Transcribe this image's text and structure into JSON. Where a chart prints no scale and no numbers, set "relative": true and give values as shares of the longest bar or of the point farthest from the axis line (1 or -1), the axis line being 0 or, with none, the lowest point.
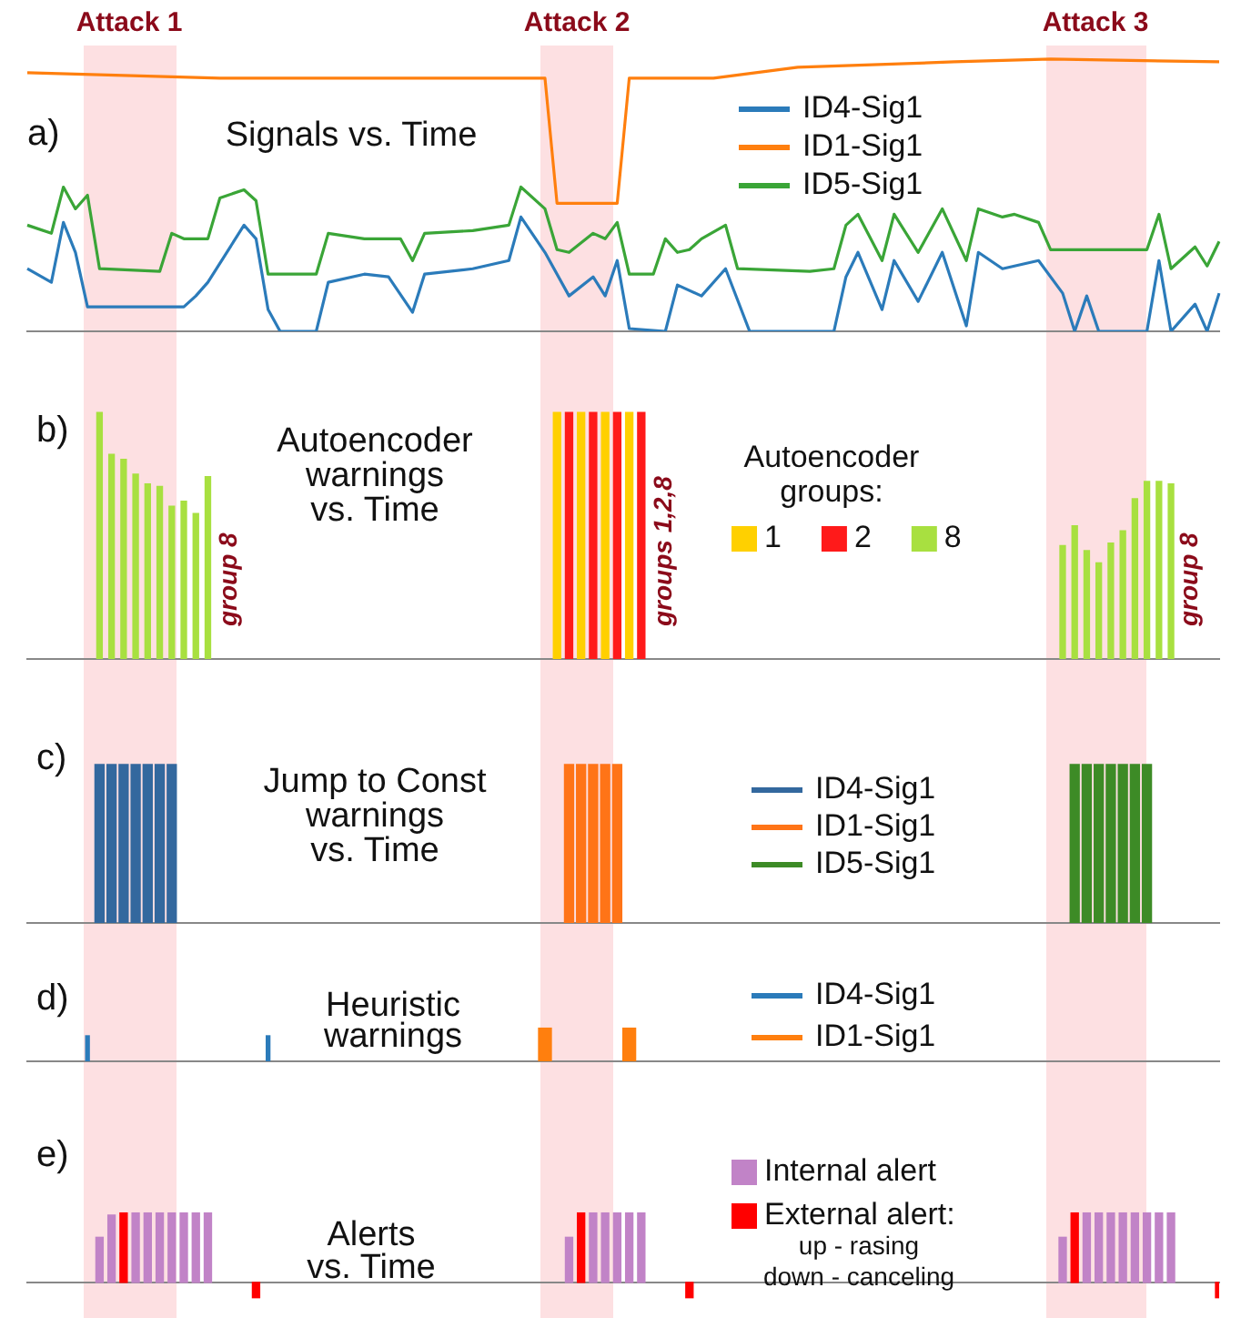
{
  "chart_data": [
    {
      "type": "line",
      "relative": true,
      "title": "Signals vs. Time",
      "annotations": [
        "a)",
        "Attack 1",
        "Attack 2",
        "Attack 3"
      ],
      "legend": "top right",
      "categories": [
        null,
        null,
        null,
        null,
        null,
        null,
        null,
        null,
        null,
        null,
        null,
        null,
        null,
        null,
        null,
        null,
        null,
        null,
        null,
        null,
        null,
        null,
        null,
        null,
        null,
        null,
        null,
        null,
        null,
        null,
        null,
        null,
        null,
        null,
        null,
        null,
        null,
        null,
        null,
        null,
        null,
        null,
        null,
        null,
        null,
        null,
        null,
        null,
        null,
        null,
        null,
        null,
        null,
        null,
        null,
        null,
        null,
        null,
        null,
        null,
        null,
        null,
        null,
        null,
        null,
        null,
        null,
        null,
        null,
        null,
        null,
        null,
        null,
        null,
        null,
        null,
        null,
        null,
        null,
        null,
        null,
        null,
        null,
        null,
        null,
        null,
        null,
        null,
        null,
        null,
        null,
        null,
        null,
        null,
        null,
        null,
        null,
        null,
        null,
        null
      ],
      "series": [
        {
          "name": "ID4-Sig1",
          "color": "#2b7bba",
          "values": [
            0.23,
            null,
            0.18,
            0.4,
            0.29,
            0.09,
            null,
            null,
            null,
            null,
            null,
            null,
            null,
            0.09,
            0.13,
            0.18,
            null,
            null,
            0.39,
            0.34,
            0.08,
            0,
            null,
            null,
            0,
            0.18,
            null,
            null,
            0.21,
            null,
            0.2,
            null,
            0.07,
            0.21,
            null,
            null,
            null,
            0.23,
            null,
            null,
            0.26,
            0.42,
            null,
            0.29,
            null,
            0.13,
            null,
            0.2,
            0.13,
            0.26,
            0.01,
            null,
            null,
            0,
            0.17,
            null,
            0.13,
            null,
            0.23,
            null,
            0,
            null,
            null,
            null,
            null,
            null,
            null,
            0,
            0.2,
            0.29,
            null,
            0.08,
            0.26,
            null,
            0.11,
            null,
            0.29,
            null,
            0.02,
            0.29,
            null,
            0.23,
            null,
            null,
            0.26,
            null,
            0.14,
            0,
            0.13,
            0,
            null,
            null,
            null,
            0,
            0.26,
            0,
            null,
            0.1,
            0,
            0.14
          ]
        },
        {
          "name": "ID1-Sig1",
          "color": "#ff7f0e",
          "values": [
            0.95,
            null,
            null,
            null,
            null,
            null,
            null,
            null,
            null,
            null,
            null,
            null,
            null,
            null,
            null,
            null,
            0.93,
            null,
            null,
            null,
            null,
            null,
            null,
            null,
            null,
            null,
            null,
            null,
            null,
            null,
            null,
            null,
            null,
            null,
            null,
            null,
            null,
            null,
            null,
            null,
            null,
            null,
            null,
            0.93,
            0.47,
            null,
            null,
            null,
            null,
            0.47,
            0.93,
            null,
            null,
            null,
            null,
            null,
            null,
            0.93,
            null,
            null,
            null,
            null,
            null,
            null,
            0.97,
            null,
            null,
            null,
            null,
            null,
            null,
            null,
            null,
            null,
            null,
            null,
            null,
            0.99,
            null,
            null,
            null,
            null,
            null,
            null,
            null,
            1,
            null,
            null,
            null,
            null,
            null,
            null,
            null,
            null,
            null,
            null,
            null,
            null,
            null,
            0.99
          ]
        },
        {
          "name": "ID5-Sig1",
          "color": "#3aa537",
          "values": [
            0.39,
            null,
            0.36,
            0.53,
            0.45,
            0.5,
            0.23,
            null,
            null,
            null,
            null,
            0.22,
            0.36,
            0.34,
            null,
            0.34,
            0.49,
            null,
            0.52,
            0.48,
            0.21,
            null,
            null,
            null,
            0.21,
            0.36,
            null,
            null,
            0.34,
            null,
            null,
            0.34,
            0.26,
            0.36,
            null,
            null,
            null,
            0.37,
            null,
            null,
            0.39,
            0.53,
            null,
            0.45,
            0.3,
            0.29,
            null,
            0.36,
            0.34,
            0.4,
            0.21,
            null,
            0.21,
            0.34,
            0.29,
            0.3,
            0.34,
            null,
            0.39,
            0.23,
            null,
            null,
            null,
            null,
            null,
            0.22,
            null,
            0.23,
            0.39,
            0.43,
            null,
            0.26,
            0.43,
            null,
            0.29,
            null,
            0.45,
            null,
            0.26,
            0.45,
            null,
            0.42,
            0.43,
            null,
            0.4,
            0.3,
            null,
            null,
            null,
            null,
            null,
            null,
            null,
            0.3,
            0.43,
            0.23,
            null,
            0.31,
            0.24,
            0.33
          ]
        }
      ]
    },
    {
      "type": "bar",
      "relative": true,
      "title": "Autoencoder\nwarnings\nvs. Time",
      "legend_title": "Autoencoder groups:",
      "annotations": [
        "b)",
        "group 8",
        "groups 1,2,8",
        "group 8"
      ],
      "legend": "right",
      "categories": [
        null,
        null,
        null,
        null,
        null,
        null,
        null,
        null,
        null,
        null,
        null,
        null,
        null,
        null,
        null,
        null,
        null,
        null,
        null,
        null,
        null,
        null,
        null,
        null,
        null,
        null,
        null,
        null,
        null,
        null,
        null,
        null,
        null,
        null,
        null,
        null,
        null,
        null,
        null,
        null,
        null,
        null,
        null,
        null,
        null,
        null,
        null,
        null,
        null,
        null,
        null,
        null,
        null,
        null,
        null,
        null,
        null,
        null,
        null,
        null,
        null,
        null,
        null,
        null,
        null,
        null,
        null,
        null,
        null,
        null,
        null,
        null,
        null,
        null,
        null,
        null,
        null,
        null,
        null,
        null,
        null,
        null,
        null,
        null,
        null,
        null,
        null,
        null,
        null,
        null,
        null,
        null,
        null,
        null,
        null,
        null,
        null,
        null,
        null,
        null
      ],
      "series": [
        {
          "name": "1",
          "color": "#ffd000",
          "values": [
            null,
            null,
            null,
            null,
            null,
            null,
            null,
            null,
            null,
            null,
            null,
            null,
            null,
            null,
            null,
            null,
            null,
            null,
            null,
            null,
            null,
            null,
            null,
            null,
            null,
            null,
            null,
            null,
            null,
            null,
            null,
            null,
            null,
            null,
            null,
            null,
            null,
            null,
            null,
            null,
            null,
            null,
            null,
            null,
            1,
            null,
            1,
            null,
            1,
            null,
            1,
            null,
            null,
            null,
            null,
            null,
            null,
            null,
            null,
            null,
            null,
            null,
            null,
            null,
            null,
            null,
            null,
            null,
            null,
            null,
            null,
            null,
            null,
            null,
            null,
            null,
            null,
            null,
            null,
            null,
            null,
            null,
            null,
            null,
            null,
            null,
            null,
            null,
            null,
            null,
            null,
            null,
            null,
            null,
            null,
            null,
            null,
            null,
            null,
            null
          ]
        },
        {
          "name": "2",
          "color": "#ff1a1a",
          "values": [
            null,
            null,
            null,
            null,
            null,
            null,
            null,
            null,
            null,
            null,
            null,
            null,
            null,
            null,
            null,
            null,
            null,
            null,
            null,
            null,
            null,
            null,
            null,
            null,
            null,
            null,
            null,
            null,
            null,
            null,
            null,
            null,
            null,
            null,
            null,
            null,
            null,
            null,
            null,
            null,
            null,
            null,
            null,
            null,
            null,
            1,
            null,
            1,
            null,
            1,
            null,
            1,
            null,
            null,
            null,
            null,
            null,
            null,
            null,
            null,
            null,
            null,
            null,
            null,
            null,
            null,
            null,
            null,
            null,
            null,
            null,
            null,
            null,
            null,
            null,
            null,
            null,
            null,
            null,
            null,
            null,
            null,
            null,
            null,
            null,
            null,
            null,
            null,
            null,
            null,
            null,
            null,
            null,
            null,
            null,
            null,
            null,
            null,
            null,
            null
          ]
        },
        {
          "name": "8",
          "color": "#a8e040",
          "values": [
            null,
            null,
            null,
            null,
            null,
            null,
            1,
            0.83,
            0.81,
            0.75,
            0.71,
            0.7,
            0.62,
            0.64,
            0.59,
            0.74,
            null,
            null,
            null,
            null,
            null,
            null,
            null,
            null,
            null,
            null,
            null,
            null,
            null,
            null,
            null,
            null,
            null,
            null,
            null,
            null,
            null,
            null,
            null,
            null,
            null,
            null,
            null,
            null,
            null,
            null,
            null,
            null,
            null,
            null,
            null,
            null,
            null,
            null,
            null,
            null,
            null,
            null,
            null,
            null,
            null,
            null,
            null,
            null,
            null,
            null,
            null,
            null,
            null,
            null,
            null,
            null,
            null,
            null,
            null,
            null,
            null,
            null,
            null,
            null,
            null,
            null,
            null,
            null,
            null,
            null,
            0.46,
            0.54,
            0.44,
            0.39,
            0.47,
            0.52,
            0.65,
            0.72,
            0.72,
            0.71,
            null,
            null,
            null,
            null
          ]
        }
      ]
    },
    {
      "type": "bar",
      "relative": true,
      "title": "Jump to Const\nwarnings\nvs. Time",
      "annotations": [
        "c)"
      ],
      "legend": "top right",
      "categories": [
        null,
        null,
        null,
        null,
        null,
        null,
        null,
        null,
        null,
        null,
        null,
        null,
        null,
        null,
        null,
        null,
        null,
        null,
        null,
        null,
        null,
        null,
        null,
        null,
        null,
        null,
        null,
        null,
        null,
        null,
        null,
        null,
        null,
        null,
        null,
        null,
        null,
        null,
        null,
        null,
        null,
        null,
        null,
        null,
        null,
        null,
        null,
        null,
        null,
        null,
        null,
        null,
        null,
        null,
        null,
        null,
        null,
        null,
        null,
        null,
        null,
        null,
        null,
        null,
        null,
        null,
        null,
        null,
        null,
        null,
        null,
        null,
        null,
        null,
        null,
        null,
        null,
        null,
        null,
        null,
        null,
        null,
        null,
        null,
        null,
        null,
        null,
        null,
        null,
        null,
        null,
        null,
        null,
        null,
        null,
        null,
        null,
        null,
        null,
        null
      ],
      "series": [
        {
          "name": "ID4-Sig1",
          "color": "#33689e",
          "values": [
            null,
            null,
            null,
            null,
            null,
            null,
            1,
            1,
            1,
            1,
            1,
            1,
            1,
            null,
            null,
            null,
            null,
            null,
            null,
            null,
            null,
            null,
            null,
            null,
            null,
            null,
            null,
            null,
            null,
            null,
            null,
            null,
            null,
            null,
            null,
            null,
            null,
            null,
            null,
            null,
            null,
            null,
            null,
            null,
            null,
            null,
            null,
            null,
            null,
            null,
            null,
            null,
            null,
            null,
            null,
            null,
            null,
            null,
            null,
            null,
            null,
            null,
            null,
            null,
            null,
            null,
            null,
            null,
            null,
            null,
            null,
            null,
            null,
            null,
            null,
            null,
            null,
            null,
            null,
            null,
            null,
            null,
            null,
            null,
            null,
            null,
            null,
            null,
            null,
            null,
            null,
            null,
            null,
            null,
            null,
            null,
            null,
            null,
            null,
            null
          ]
        },
        {
          "name": "ID1-Sig1",
          "color": "#ff7417",
          "values": [
            null,
            null,
            null,
            null,
            null,
            null,
            null,
            null,
            null,
            null,
            null,
            null,
            null,
            null,
            null,
            null,
            null,
            null,
            null,
            null,
            null,
            null,
            null,
            null,
            null,
            null,
            null,
            null,
            null,
            null,
            null,
            null,
            null,
            null,
            null,
            null,
            null,
            null,
            null,
            null,
            null,
            null,
            null,
            null,
            null,
            1,
            1,
            1,
            1,
            1,
            null,
            null,
            null,
            null,
            null,
            null,
            null,
            null,
            null,
            null,
            null,
            null,
            null,
            null,
            null,
            null,
            null,
            null,
            null,
            null,
            null,
            null,
            null,
            null,
            null,
            null,
            null,
            null,
            null,
            null,
            null,
            null,
            null,
            null,
            null,
            null,
            null,
            null,
            null,
            null,
            null,
            null,
            null,
            null,
            null,
            null,
            null,
            null,
            null,
            null
          ]
        },
        {
          "name": "ID5-Sig1",
          "color": "#3d8b26",
          "values": [
            null,
            null,
            null,
            null,
            null,
            null,
            null,
            null,
            null,
            null,
            null,
            null,
            null,
            null,
            null,
            null,
            null,
            null,
            null,
            null,
            null,
            null,
            null,
            null,
            null,
            null,
            null,
            null,
            null,
            null,
            null,
            null,
            null,
            null,
            null,
            null,
            null,
            null,
            null,
            null,
            null,
            null,
            null,
            null,
            null,
            null,
            null,
            null,
            null,
            null,
            null,
            null,
            null,
            null,
            null,
            null,
            null,
            null,
            null,
            null,
            null,
            null,
            null,
            null,
            null,
            null,
            null,
            null,
            null,
            null,
            null,
            null,
            null,
            null,
            null,
            null,
            null,
            null,
            null,
            null,
            null,
            null,
            null,
            null,
            null,
            null,
            null,
            1,
            1,
            1,
            1,
            1,
            1,
            1,
            null,
            null,
            null,
            null,
            null,
            null
          ]
        }
      ]
    },
    {
      "type": "bar",
      "relative": true,
      "title": "Heuristic\nwarnings",
      "annotations": [
        "d)"
      ],
      "legend": "top right",
      "categories": [
        null,
        null,
        null,
        null,
        null,
        null,
        null,
        null,
        null,
        null,
        null,
        null,
        null,
        null,
        null,
        null,
        null,
        null,
        null,
        null,
        null,
        null,
        null,
        null,
        null,
        null,
        null,
        null,
        null,
        null,
        null,
        null,
        null,
        null,
        null,
        null,
        null,
        null,
        null,
        null,
        null,
        null,
        null,
        null,
        null,
        null,
        null,
        null,
        null,
        null,
        null,
        null,
        null,
        null,
        null,
        null,
        null,
        null,
        null,
        null,
        null,
        null,
        null,
        null,
        null,
        null,
        null,
        null,
        null,
        null,
        null,
        null,
        null,
        null,
        null,
        null,
        null,
        null,
        null,
        null,
        null,
        null,
        null,
        null,
        null,
        null,
        null,
        null,
        null,
        null,
        null,
        null,
        null,
        null,
        null,
        null,
        null,
        null,
        null,
        null
      ],
      "series": [
        {
          "name": "ID4-Sig1",
          "color": "#2b7bba",
          "values": [
            null,
            null,
            null,
            null,
            null,
            0.77,
            null,
            null,
            null,
            null,
            null,
            null,
            null,
            null,
            null,
            null,
            null,
            null,
            null,
            null,
            0.77,
            null,
            null,
            null,
            null,
            null,
            null,
            null,
            null,
            null,
            null,
            null,
            null,
            null,
            null,
            null,
            null,
            null,
            null,
            null,
            null,
            null,
            null,
            null,
            null,
            null,
            null,
            null,
            null,
            null,
            null,
            null,
            null,
            null,
            null,
            null,
            null,
            null,
            null,
            null,
            null,
            null,
            null,
            null,
            null,
            null,
            null,
            null,
            null,
            null,
            null,
            null,
            null,
            null,
            null,
            null,
            null,
            null,
            null,
            null,
            null,
            null,
            null,
            null,
            null,
            null,
            null,
            null,
            null,
            null,
            null,
            null,
            null,
            null,
            null,
            null,
            null,
            null,
            null,
            null
          ]
        },
        {
          "name": "ID1-Sig1",
          "color": "#ff7f0e",
          "values": [
            null,
            null,
            null,
            null,
            null,
            null,
            null,
            null,
            null,
            null,
            null,
            null,
            null,
            null,
            null,
            null,
            null,
            null,
            null,
            null,
            null,
            null,
            null,
            null,
            null,
            null,
            null,
            null,
            null,
            null,
            null,
            null,
            null,
            null,
            null,
            null,
            null,
            null,
            null,
            null,
            null,
            null,
            null,
            1,
            null,
            null,
            null,
            null,
            null,
            null,
            1,
            null,
            null,
            null,
            null,
            null,
            null,
            null,
            null,
            null,
            null,
            null,
            null,
            null,
            null,
            null,
            null,
            null,
            null,
            null,
            null,
            null,
            null,
            null,
            null,
            null,
            null,
            null,
            null,
            null,
            null,
            null,
            null,
            null,
            null,
            null,
            null,
            null,
            null,
            null,
            null,
            null,
            null,
            null,
            null,
            null,
            null,
            null,
            null,
            null
          ]
        }
      ]
    },
    {
      "type": "bar",
      "relative": true,
      "title": "Alerts\nvs. Time",
      "annotations": [
        "e)",
        "up - rasing",
        "down - canceling"
      ],
      "legend": "top right",
      "categories": [
        null,
        null,
        null,
        null,
        null,
        null,
        null,
        null,
        null,
        null,
        null,
        null,
        null,
        null,
        null,
        null,
        null,
        null,
        null,
        null,
        null,
        null,
        null,
        null,
        null,
        null,
        null,
        null,
        null,
        null,
        null,
        null,
        null,
        null,
        null,
        null,
        null,
        null,
        null,
        null,
        null,
        null,
        null,
        null,
        null,
        null,
        null,
        null,
        null,
        null,
        null,
        null,
        null,
        null,
        null,
        null,
        null,
        null,
        null,
        null,
        null,
        null,
        null,
        null,
        null,
        null,
        null,
        null,
        null,
        null,
        null,
        null,
        null,
        null,
        null,
        null,
        null,
        null,
        null,
        null,
        null,
        null,
        null,
        null,
        null,
        null,
        null,
        null,
        null,
        null,
        null,
        null,
        null,
        null,
        null,
        null,
        null,
        null,
        null,
        null
      ],
      "series": [
        {
          "name": "Internal alert",
          "color": "#c183c7",
          "values": [
            null,
            null,
            null,
            null,
            null,
            null,
            0.65,
            0.97,
            null,
            1,
            1,
            1,
            1,
            1,
            1,
            1,
            null,
            null,
            null,
            null,
            null,
            null,
            null,
            null,
            null,
            null,
            null,
            null,
            null,
            null,
            null,
            null,
            null,
            null,
            null,
            null,
            null,
            null,
            null,
            null,
            null,
            null,
            null,
            null,
            null,
            0.65,
            null,
            1,
            1,
            1,
            1,
            1,
            null,
            null,
            null,
            null,
            null,
            null,
            null,
            null,
            null,
            null,
            null,
            null,
            null,
            null,
            null,
            null,
            null,
            null,
            null,
            null,
            null,
            null,
            null,
            null,
            null,
            null,
            null,
            null,
            null,
            null,
            null,
            null,
            null,
            null,
            0.65,
            null,
            1,
            1,
            1,
            1,
            1,
            1,
            1,
            1,
            null,
            null,
            null,
            null
          ]
        },
        {
          "name": "External alert:",
          "color": "#ff0000",
          "values": [
            null,
            null,
            null,
            null,
            null,
            null,
            null,
            null,
            1,
            null,
            null,
            null,
            null,
            null,
            null,
            null,
            null,
            null,
            null,
            -0.22,
            null,
            null,
            null,
            null,
            null,
            null,
            null,
            null,
            null,
            null,
            null,
            null,
            null,
            null,
            null,
            null,
            null,
            null,
            null,
            null,
            null,
            null,
            null,
            null,
            null,
            null,
            1,
            null,
            null,
            null,
            null,
            null,
            null,
            null,
            null,
            -0.22,
            null,
            null,
            null,
            null,
            null,
            null,
            null,
            null,
            null,
            null,
            null,
            null,
            null,
            null,
            null,
            null,
            null,
            null,
            null,
            null,
            null,
            null,
            null,
            null,
            null,
            null,
            null,
            null,
            null,
            null,
            null,
            1,
            null,
            null,
            null,
            null,
            null,
            null,
            null,
            null,
            null,
            null,
            null,
            -0.22
          ]
        }
      ]
    }
  ]
}
